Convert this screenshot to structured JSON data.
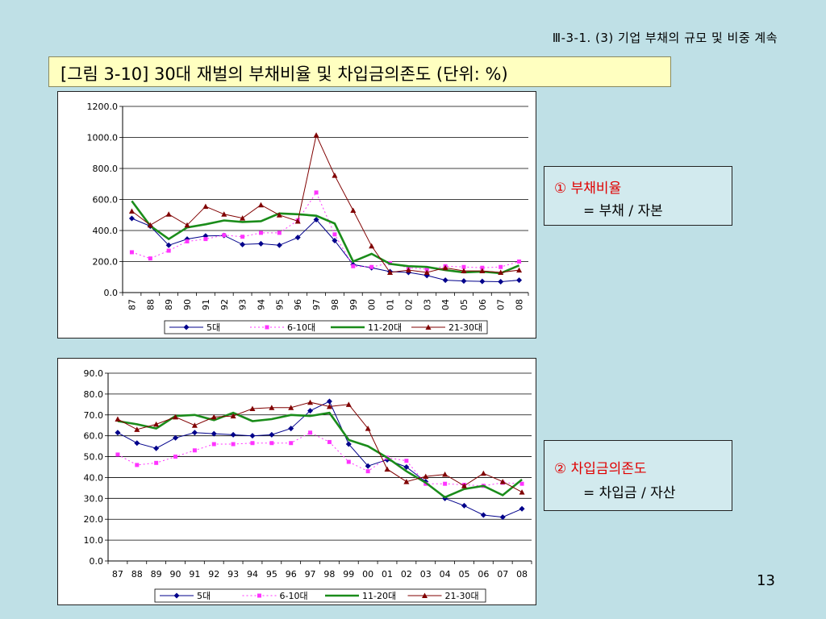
{
  "header": {
    "section": "Ⅲ-3-1. (3) 기업 부채의 규모 및 비중 계속"
  },
  "title": "[그림 3-10] 30대 재벌의 부채비율 및 차입금의존도 (단위: %)",
  "notes": [
    {
      "title": "① 부채비율",
      "formula": "= 부채 / 자본"
    },
    {
      "title": "② 차입금의존도",
      "formula": "= 차입금 / 자산"
    }
  ],
  "page_number": "13",
  "colors": {
    "background": "#bfe0e6",
    "title_box": "#ffffc0",
    "note_title": "#e00000",
    "series_5": "#00008b",
    "series_6_10": "#ff33ff",
    "series_11_20": "#1a8c1a",
    "series_21_30": "#800000"
  },
  "chart_data": [
    {
      "type": "line",
      "categories": [
        "87",
        "88",
        "89",
        "90",
        "91",
        "92",
        "93",
        "94",
        "95",
        "96",
        "97",
        "98",
        "99",
        "00",
        "01",
        "02",
        "03",
        "04",
        "05",
        "06",
        "07",
        "08"
      ],
      "ylim": [
        0,
        1200
      ],
      "ytick_labels": [
        "0.0",
        "200.0",
        "400.0",
        "600.0",
        "800.0",
        "1000.0",
        "1200.0"
      ],
      "grid": true,
      "legend_position": "bottom",
      "series": [
        {
          "name": "5대",
          "values": [
            478,
            428,
            305,
            345,
            365,
            368,
            310,
            315,
            305,
            355,
            470,
            335,
            180,
            160,
            135,
            130,
            110,
            80,
            75,
            72,
            70,
            80
          ]
        },
        {
          "name": "6-10대",
          "values": [
            260,
            220,
            270,
            330,
            345,
            370,
            360,
            385,
            385,
            465,
            645,
            375,
            170,
            165,
            190,
            160,
            150,
            170,
            165,
            160,
            165,
            200
          ]
        },
        {
          "name": "11-20대",
          "values": [
            590,
            430,
            345,
            420,
            440,
            465,
            455,
            460,
            510,
            505,
            495,
            445,
            200,
            250,
            185,
            170,
            165,
            145,
            130,
            135,
            125,
            175
          ]
        },
        {
          "name": "21-30대",
          "values": [
            525,
            435,
            505,
            435,
            555,
            505,
            480,
            565,
            500,
            460,
            1015,
            755,
            530,
            300,
            130,
            145,
            130,
            160,
            140,
            140,
            130,
            145
          ]
        }
      ]
    },
    {
      "type": "line",
      "categories": [
        "87",
        "88",
        "89",
        "90",
        "91",
        "92",
        "93",
        "94",
        "95",
        "96",
        "97",
        "98",
        "99",
        "00",
        "01",
        "02",
        "03",
        "04",
        "05",
        "06",
        "07",
        "08"
      ],
      "ylim": [
        0,
        90
      ],
      "ytick_labels": [
        "0.0",
        "10.0",
        "20.0",
        "30.0",
        "40.0",
        "50.0",
        "60.0",
        "70.0",
        "80.0",
        "90.0"
      ],
      "grid": true,
      "legend_position": "bottom",
      "series": [
        {
          "name": "5대",
          "values": [
            61.5,
            56.5,
            54,
            59,
            61.5,
            61,
            60.5,
            60,
            60.5,
            63.5,
            72,
            76.5,
            56,
            45.5,
            48.5,
            45,
            38,
            30,
            26.5,
            22,
            21,
            25
          ]
        },
        {
          "name": "6-10대",
          "values": [
            51,
            46,
            47,
            50,
            53,
            56,
            56,
            56.5,
            56.5,
            56.5,
            61.5,
            57,
            47.5,
            43,
            49.5,
            48,
            37,
            37,
            36.5,
            36,
            37.5,
            37
          ]
        },
        {
          "name": "11-20대",
          "values": [
            67,
            65.5,
            63.5,
            69.5,
            70,
            67.5,
            71,
            67,
            68,
            70,
            69.5,
            71,
            58,
            55,
            49.5,
            43,
            37.5,
            30.5,
            34.5,
            36,
            31.5,
            39
          ]
        },
        {
          "name": "21-30대",
          "values": [
            68,
            63,
            65.5,
            69,
            65,
            69,
            69.5,
            73,
            73.5,
            73.5,
            76,
            74,
            75,
            63.5,
            44,
            38,
            40.5,
            41.5,
            36,
            42,
            38,
            33
          ]
        }
      ]
    }
  ]
}
